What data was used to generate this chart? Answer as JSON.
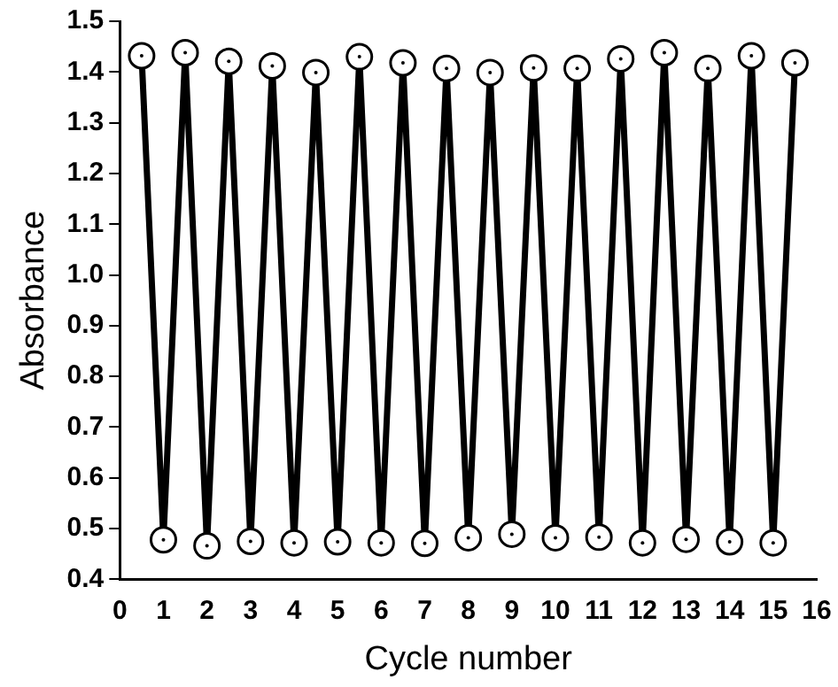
{
  "chart_data": {
    "type": "line",
    "xlabel": "Cycle number",
    "ylabel": "Absorbance",
    "x": [
      0.5,
      1,
      1.5,
      2,
      2.5,
      3,
      3.5,
      4,
      4.5,
      5,
      5.5,
      6,
      6.5,
      7,
      7.5,
      8,
      8.5,
      9,
      9.5,
      10,
      10.5,
      11,
      11.5,
      12,
      12.5,
      13,
      13.5,
      14,
      14.5,
      15,
      15.5
    ],
    "series": [
      {
        "color": "#000000",
        "values": [
          1.432,
          0.478,
          1.438,
          0.466,
          1.421,
          0.475,
          1.412,
          0.472,
          1.399,
          0.474,
          1.43,
          0.472,
          1.418,
          0.471,
          1.407,
          0.482,
          1.399,
          0.489,
          1.408,
          0.482,
          1.407,
          0.483,
          1.426,
          0.472,
          1.438,
          0.479,
          1.407,
          0.474,
          1.432,
          0.472,
          1.418
        ]
      }
    ],
    "xlim": [
      0,
      16
    ],
    "xticks": [
      0,
      1,
      2,
      3,
      4,
      5,
      6,
      7,
      8,
      9,
      10,
      11,
      12,
      13,
      14,
      15,
      16
    ],
    "ylim": [
      0.4,
      1.5
    ],
    "yticks": [
      0.4,
      0.5,
      0.6,
      0.7,
      0.8,
      0.9,
      {
        "value": 1,
        "label": "1.0"
      },
      1.1,
      1.2,
      1.3,
      1.4,
      1.5
    ],
    "grid": false,
    "legend": false,
    "marker": "circle",
    "line_style": "solid"
  }
}
